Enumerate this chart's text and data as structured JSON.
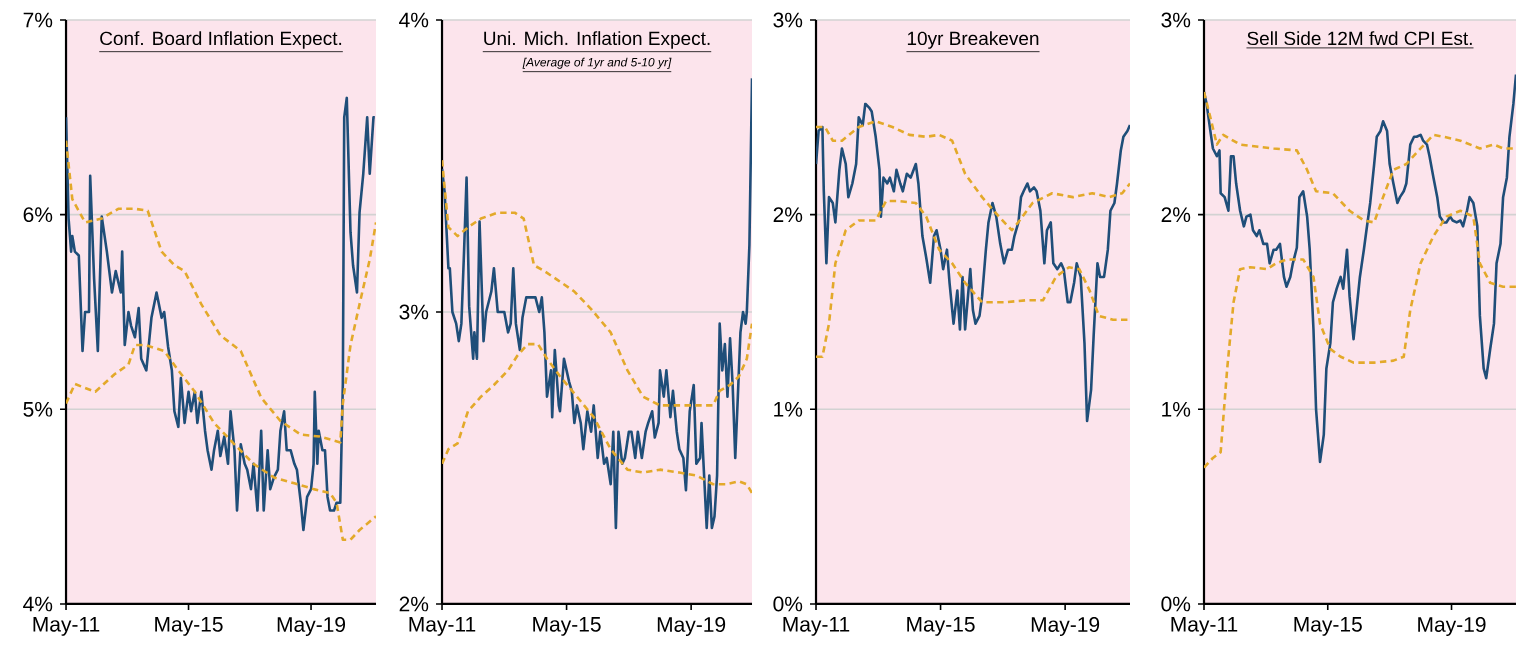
{
  "chart_data": [
    {
      "type": "line",
      "title": "Conf. Board Inflation Expect.",
      "grid": "y",
      "xlim": [
        "2011-05-01",
        "2021-06-15"
      ],
      "xticks": [
        {
          "value": "2011-05-01",
          "label": "May-11"
        },
        {
          "value": "2015-05-01",
          "label": "May-15"
        },
        {
          "value": "2019-05-01",
          "label": "May-19"
        }
      ],
      "ylim": [
        4,
        7
      ],
      "yticks": [
        {
          "value": 4,
          "label": "4%"
        },
        {
          "value": 5,
          "label": "5%"
        },
        {
          "value": 6,
          "label": "6%"
        },
        {
          "value": 7,
          "label": "7%"
        }
      ],
      "series": [
        {
          "color": "#1f4e79",
          "line_style": "solid",
          "x": [
            "2011-05-01",
            "2011-06-01",
            "2011-07-01",
            "2011-07-15",
            "2011-08-15",
            "2011-10-01",
            "2011-11-15",
            "2011-12-15",
            "2012-02-01",
            "2012-02-15",
            "2012-04-01",
            "2012-05-15",
            "2012-07-01",
            "2012-09-01",
            "2012-11-01",
            "2012-12-15",
            "2013-02-15",
            "2013-03-01",
            "2013-04-01",
            "2013-05-15",
            "2013-06-15",
            "2013-08-01",
            "2013-09-15",
            "2013-10-15",
            "2013-12-15",
            "2014-02-15",
            "2014-04-15",
            "2014-06-15",
            "2014-07-15",
            "2014-09-01",
            "2014-10-15",
            "2014-11-15",
            "2015-01-01",
            "2015-02-01",
            "2015-03-15",
            "2015-05-01",
            "2015-06-01",
            "2015-07-15",
            "2015-08-15",
            "2015-10-01",
            "2015-11-15",
            "2015-12-15",
            "2016-02-01",
            "2016-03-01",
            "2016-04-15",
            "2016-05-15",
            "2016-07-01",
            "2016-08-15",
            "2016-09-15",
            "2016-11-01",
            "2016-12-01",
            "2017-01-15",
            "2017-03-01",
            "2017-04-01",
            "2017-05-15",
            "2017-06-15",
            "2017-08-01",
            "2017-09-15",
            "2017-10-15",
            "2017-12-01",
            "2018-01-01",
            "2018-02-15",
            "2018-04-01",
            "2018-05-01",
            "2018-06-15",
            "2018-07-15",
            "2018-09-01",
            "2018-10-15",
            "2018-11-15",
            "2019-01-01",
            "2019-02-01",
            "2019-03-15",
            "2019-05-01",
            "2019-06-01",
            "2019-06-15",
            "2019-07-15",
            "2019-08-01",
            "2019-09-15",
            "2019-10-15",
            "2019-11-15",
            "2019-12-15",
            "2020-02-01",
            "2020-03-01",
            "2020-04-15",
            "2020-05-15",
            "2020-06-01",
            "2020-07-01",
            "2020-08-15",
            "2020-09-15",
            "2020-11-01",
            "2020-12-01",
            "2021-01-15",
            "2021-03-01",
            "2021-04-01",
            "2021-05-15",
            "2021-06-01"
          ],
          "values": [
            6.5,
            5.98,
            5.81,
            5.89,
            5.81,
            5.79,
            5.3,
            5.5,
            5.5,
            6.2,
            5.67,
            5.3,
            5.99,
            5.81,
            5.6,
            5.71,
            5.6,
            5.81,
            5.33,
            5.5,
            5.43,
            5.37,
            5.52,
            5.26,
            5.2,
            5.47,
            5.6,
            5.47,
            5.5,
            5.32,
            5.2,
            4.99,
            4.91,
            5.16,
            4.93,
            5.09,
            4.99,
            5.09,
            4.93,
            5.09,
            4.89,
            4.79,
            4.69,
            4.79,
            4.89,
            4.76,
            4.86,
            4.72,
            4.99,
            4.79,
            4.48,
            4.82,
            4.72,
            4.69,
            4.59,
            4.72,
            4.48,
            4.89,
            4.48,
            4.79,
            4.59,
            4.65,
            4.69,
            4.89,
            4.99,
            4.79,
            4.79,
            4.72,
            4.69,
            4.52,
            4.38,
            4.55,
            4.59,
            4.72,
            5.09,
            4.72,
            4.89,
            4.79,
            4.79,
            4.55,
            4.48,
            4.48,
            4.52,
            4.52,
            5.13,
            6.5,
            6.6,
            5.91,
            5.74,
            5.6,
            6.01,
            6.21,
            6.5,
            6.21,
            6.5,
            6.5
          ]
        },
        {
          "color": "#e3a92a",
          "line_style": "dashed",
          "x": [
            "2011-05-01",
            "2011-07-15",
            "2011-12-15",
            "2012-07-01",
            "2013-01-15",
            "2013-08-01",
            "2014-01-01",
            "2014-06-15",
            "2014-11-15",
            "2015-03-15",
            "2015-10-01",
            "2016-05-15",
            "2017-01-15",
            "2017-09-15",
            "2018-05-01",
            "2019-01-01",
            "2019-08-15",
            "2020-04-15",
            "2020-05-15",
            "2020-08-15",
            "2020-12-01",
            "2021-04-01",
            "2021-06-15"
          ],
          "values": [
            6.38,
            6.08,
            5.96,
            5.98,
            6.03,
            6.03,
            6.02,
            5.81,
            5.74,
            5.71,
            5.54,
            5.38,
            5.3,
            5.06,
            4.94,
            4.87,
            4.86,
            4.83,
            5.03,
            5.33,
            5.54,
            5.77,
            5.96
          ]
        },
        {
          "color": "#e3a92a",
          "line_style": "dashed",
          "x": [
            "2011-05-01",
            "2011-08-15",
            "2012-04-15",
            "2012-12-01",
            "2013-05-15",
            "2013-08-01",
            "2013-12-01",
            "2014-07-15",
            "2015-01-01",
            "2015-07-15",
            "2016-03-01",
            "2016-11-01",
            "2017-06-15",
            "2018-02-15",
            "2018-10-15",
            "2019-06-01",
            "2019-12-15",
            "2020-03-01",
            "2020-05-15",
            "2020-08-15",
            "2020-12-01",
            "2021-06-15"
          ],
          "values": [
            5.03,
            5.13,
            5.09,
            5.18,
            5.23,
            5.33,
            5.33,
            5.3,
            5.2,
            5.09,
            4.93,
            4.82,
            4.72,
            4.65,
            4.62,
            4.59,
            4.57,
            4.52,
            4.33,
            4.33,
            4.38,
            4.45
          ]
        }
      ]
    },
    {
      "type": "line",
      "title": "Uni. Mich. Inflation Expect.",
      "subtitle": "[Average of 1yr and 5-10 yr]",
      "grid": "y",
      "xlim": [
        "2011-05-01",
        "2021-04-15"
      ],
      "xticks": [
        {
          "value": "2011-05-01",
          "label": "May-11"
        },
        {
          "value": "2015-05-01",
          "label": "May-15"
        },
        {
          "value": "2019-05-01",
          "label": "May-19"
        }
      ],
      "ylim": [
        2,
        4
      ],
      "yticks": [
        {
          "value": 2,
          "label": "2%"
        },
        {
          "value": 3,
          "label": "3%"
        },
        {
          "value": 4,
          "label": "4%"
        }
      ],
      "series": [
        {
          "color": "#1f4e79",
          "line_style": "solid",
          "x": [
            "2011-05-01",
            "2011-06-01",
            "2011-07-15",
            "2011-08-01",
            "2011-09-01",
            "2011-10-15",
            "2011-11-15",
            "2011-12-15",
            "2012-01-15",
            "2012-02-15",
            "2012-03-15",
            "2012-05-01",
            "2012-05-15",
            "2012-06-15",
            "2012-07-15",
            "2012-09-01",
            "2012-10-01",
            "2012-12-01",
            "2013-01-01",
            "2013-02-15",
            "2013-04-01",
            "2013-05-01",
            "2013-06-15",
            "2013-07-15",
            "2013-08-15",
            "2013-09-15",
            "2013-11-01",
            "2013-12-01",
            "2014-01-15",
            "2014-03-01",
            "2014-05-01",
            "2014-06-15",
            "2014-07-15",
            "2014-08-15",
            "2014-09-15",
            "2014-11-01",
            "2014-11-15",
            "2014-12-15",
            "2015-02-01",
            "2015-02-15",
            "2015-04-01",
            "2015-05-01",
            "2015-06-01",
            "2015-07-01",
            "2015-08-01",
            "2015-09-01",
            "2015-10-15",
            "2015-11-15",
            "2016-01-01",
            "2016-02-15",
            "2016-03-15",
            "2016-05-01",
            "2016-06-01",
            "2016-07-15",
            "2016-08-15",
            "2016-10-01",
            "2016-11-01",
            "2016-12-01",
            "2017-01-01",
            "2017-02-15",
            "2017-03-15",
            "2017-05-01",
            "2017-06-01",
            "2017-07-15",
            "2017-08-15",
            "2017-10-01",
            "2017-11-15",
            "2017-12-15",
            "2018-02-01",
            "2018-03-01",
            "2018-04-15",
            "2018-05-01",
            "2018-06-15",
            "2018-07-15",
            "2018-09-01",
            "2018-10-01",
            "2018-11-15",
            "2018-12-15",
            "2019-02-01",
            "2019-03-01",
            "2019-04-15",
            "2019-06-01",
            "2019-07-01",
            "2019-08-15",
            "2019-09-01",
            "2019-10-01",
            "2019-11-01",
            "2019-12-01",
            "2020-01-01",
            "2020-02-01",
            "2020-03-01",
            "2020-04-01",
            "2020-05-01",
            "2020-06-01",
            "2020-07-01",
            "2020-08-01",
            "2020-09-01",
            "2020-10-01",
            "2020-11-01",
            "2020-12-01",
            "2021-01-01",
            "2021-02-01",
            "2021-02-15",
            "2021-03-15",
            "2021-04-15"
          ],
          "values": [
            3.49,
            3.41,
            3.15,
            3.15,
            3.0,
            2.96,
            2.9,
            2.96,
            3.2,
            3.46,
            3.02,
            2.84,
            2.93,
            2.84,
            3.31,
            2.9,
            3.0,
            3.07,
            3.15,
            3.0,
            3.0,
            3.0,
            2.93,
            2.96,
            3.15,
            2.96,
            2.87,
            2.98,
            3.05,
            3.05,
            3.05,
            3.0,
            3.05,
            2.93,
            2.71,
            2.8,
            2.64,
            2.87,
            2.68,
            2.66,
            2.84,
            2.8,
            2.76,
            2.73,
            2.62,
            2.68,
            2.62,
            2.53,
            2.66,
            2.59,
            2.68,
            2.5,
            2.59,
            2.48,
            2.5,
            2.41,
            2.59,
            2.26,
            2.59,
            2.48,
            2.5,
            2.59,
            2.59,
            2.5,
            2.59,
            2.5,
            2.59,
            2.62,
            2.66,
            2.57,
            2.62,
            2.8,
            2.71,
            2.8,
            2.64,
            2.73,
            2.59,
            2.53,
            2.5,
            2.39,
            2.66,
            2.75,
            2.48,
            2.5,
            2.62,
            2.44,
            2.26,
            2.44,
            2.26,
            2.3,
            2.44,
            2.96,
            2.8,
            2.89,
            2.71,
            2.91,
            2.75,
            2.5,
            2.71,
            2.93,
            3.0,
            2.96,
            3.0,
            3.23,
            3.8
          ]
        },
        {
          "color": "#e3a92a",
          "line_style": "dashed",
          "x": [
            "2011-05-01",
            "2011-07-15",
            "2011-11-01",
            "2012-03-01",
            "2012-08-01",
            "2013-02-15",
            "2013-09-01",
            "2013-12-15",
            "2014-04-15",
            "2014-08-15",
            "2015-01-15",
            "2015-08-01",
            "2016-02-15",
            "2016-10-01",
            "2017-04-15",
            "2017-10-15",
            "2018-05-01",
            "2018-12-15",
            "2019-08-15",
            "2020-01-15",
            "2020-04-01",
            "2020-08-01",
            "2020-11-15",
            "2021-02-15",
            "2021-04-15"
          ],
          "values": [
            3.52,
            3.29,
            3.26,
            3.29,
            3.32,
            3.34,
            3.34,
            3.32,
            3.16,
            3.14,
            3.11,
            3.07,
            3.01,
            2.93,
            2.8,
            2.71,
            2.68,
            2.68,
            2.68,
            2.68,
            2.73,
            2.75,
            2.78,
            2.84,
            2.96
          ]
        },
        {
          "color": "#e3a92a",
          "line_style": "dashed",
          "x": [
            "2011-05-01",
            "2011-07-15",
            "2011-11-01",
            "2012-03-01",
            "2012-08-01",
            "2013-01-01",
            "2013-06-15",
            "2013-10-01",
            "2014-02-01",
            "2014-06-01",
            "2014-09-15",
            "2015-02-15",
            "2015-09-01",
            "2016-03-15",
            "2016-10-01",
            "2017-04-15",
            "2017-10-15",
            "2018-05-01",
            "2018-12-15",
            "2019-07-01",
            "2020-01-15",
            "2020-06-15",
            "2020-11-15",
            "2021-02-15",
            "2021-04-15"
          ],
          "values": [
            2.48,
            2.53,
            2.55,
            2.66,
            2.71,
            2.75,
            2.8,
            2.85,
            2.89,
            2.89,
            2.84,
            2.78,
            2.71,
            2.64,
            2.53,
            2.46,
            2.45,
            2.46,
            2.45,
            2.44,
            2.41,
            2.41,
            2.42,
            2.41,
            2.38
          ]
        }
      ]
    },
    {
      "type": "line",
      "title": "10yr Breakeven",
      "grid": "y",
      "xlim": [
        "2011-05-01",
        "2021-06-01"
      ],
      "xticks": [
        {
          "value": "2011-05-01",
          "label": "May-11"
        },
        {
          "value": "2015-05-01",
          "label": "May-15"
        },
        {
          "value": "2019-05-01",
          "label": "May-19"
        }
      ],
      "ylim": [
        0,
        3
      ],
      "yticks": [
        {
          "value": 0,
          "label": "0%"
        },
        {
          "value": 1,
          "label": "1%"
        },
        {
          "value": 2,
          "label": "2%"
        },
        {
          "value": 3,
          "label": "3%"
        }
      ],
      "series": [
        {
          "color": "#1f4e79",
          "line_style": "solid",
          "x": [
            "2011-05-01",
            "2011-06-01",
            "2011-07-15",
            "2011-08-01",
            "2011-09-01",
            "2011-10-01",
            "2011-11-15",
            "2011-12-15",
            "2012-02-01",
            "2012-03-01",
            "2012-04-15",
            "2012-05-15",
            "2012-07-01",
            "2012-08-15",
            "2012-09-15",
            "2012-11-01",
            "2012-12-01",
            "2013-01-15",
            "2013-02-15",
            "2013-04-01",
            "2013-05-15",
            "2013-06-01",
            "2013-07-01",
            "2013-08-15",
            "2013-09-15",
            "2013-11-01",
            "2013-12-01",
            "2014-01-15",
            "2014-02-15",
            "2014-04-01",
            "2014-05-15",
            "2014-07-15",
            "2014-08-15",
            "2014-10-01",
            "2014-11-15",
            "2015-01-01",
            "2015-02-15",
            "2015-03-15",
            "2015-05-01",
            "2015-06-01",
            "2015-07-15",
            "2015-08-15",
            "2015-10-01",
            "2015-11-15",
            "2015-12-15",
            "2016-01-15",
            "2016-02-15",
            "2016-04-15",
            "2016-05-15",
            "2016-06-15",
            "2016-08-01",
            "2016-09-01",
            "2016-10-15",
            "2016-11-15",
            "2017-01-01",
            "2017-02-15",
            "2017-04-01",
            "2017-05-15",
            "2017-07-01",
            "2017-08-15",
            "2017-09-15",
            "2017-11-01",
            "2017-12-01",
            "2018-01-01",
            "2018-02-15",
            "2018-03-15",
            "2018-05-01",
            "2018-06-01",
            "2018-07-15",
            "2018-09-01",
            "2018-10-01",
            "2018-11-15",
            "2018-12-15",
            "2019-02-01",
            "2019-03-15",
            "2019-04-15",
            "2019-06-01",
            "2019-07-01",
            "2019-08-15",
            "2019-09-15",
            "2019-11-01",
            "2019-12-15",
            "2020-01-15",
            "2020-03-01",
            "2020-04-01",
            "2020-05-15",
            "2020-06-15",
            "2020-08-01",
            "2020-09-15",
            "2020-10-15",
            "2020-12-01",
            "2021-01-01",
            "2021-02-15",
            "2021-03-15",
            "2021-05-01",
            "2021-06-01"
          ],
          "values": [
            2.26,
            2.43,
            2.45,
            2.12,
            1.75,
            2.09,
            2.06,
            1.96,
            2.23,
            2.34,
            2.26,
            2.09,
            2.16,
            2.26,
            2.5,
            2.46,
            2.57,
            2.55,
            2.53,
            2.4,
            2.23,
            1.99,
            2.19,
            2.16,
            2.19,
            2.12,
            2.23,
            2.16,
            2.12,
            2.21,
            2.19,
            2.26,
            2.16,
            1.89,
            1.78,
            1.65,
            1.89,
            1.92,
            1.82,
            1.72,
            1.82,
            1.65,
            1.44,
            1.61,
            1.41,
            1.68,
            1.41,
            1.72,
            1.51,
            1.44,
            1.48,
            1.58,
            1.82,
            1.96,
            2.06,
            1.99,
            1.85,
            1.75,
            1.82,
            1.82,
            1.89,
            1.96,
            2.09,
            2.12,
            2.16,
            2.12,
            2.14,
            2.12,
            2.02,
            1.75,
            1.92,
            1.96,
            1.75,
            1.72,
            1.75,
            1.72,
            1.55,
            1.55,
            1.65,
            1.75,
            1.68,
            1.34,
            0.94,
            1.1,
            1.38,
            1.75,
            1.68,
            1.68,
            1.82,
            2.02,
            2.06,
            2.16,
            2.33,
            2.4,
            2.43,
            2.46
          ]
        },
        {
          "color": "#e3a92a",
          "line_style": "dashed",
          "x": [
            "2011-05-01",
            "2011-08-15",
            "2011-11-15",
            "2012-03-01",
            "2012-09-15",
            "2013-04-01",
            "2013-10-15",
            "2014-05-01",
            "2014-11-15",
            "2015-04-15",
            "2015-09-15",
            "2016-02-15",
            "2016-09-01",
            "2017-03-15",
            "2017-08-15",
            "2017-11-15",
            "2018-04-15",
            "2018-12-01",
            "2019-08-01",
            "2020-03-15",
            "2020-10-01",
            "2021-03-01",
            "2021-06-01"
          ],
          "values": [
            2.45,
            2.45,
            2.38,
            2.38,
            2.45,
            2.48,
            2.45,
            2.41,
            2.4,
            2.41,
            2.38,
            2.21,
            2.09,
            1.99,
            1.92,
            1.97,
            2.06,
            2.11,
            2.09,
            2.11,
            2.09,
            2.11,
            2.16
          ]
        },
        {
          "color": "#e3a92a",
          "line_style": "dashed",
          "x": [
            "2011-05-01",
            "2011-07-15",
            "2011-10-01",
            "2011-12-15",
            "2012-04-15",
            "2012-09-15",
            "2013-04-01",
            "2013-08-01",
            "2014-01-01",
            "2014-07-15",
            "2014-11-15",
            "2015-04-15",
            "2015-09-15",
            "2016-02-15",
            "2016-09-01",
            "2017-06-01",
            "2018-02-01",
            "2018-08-15",
            "2019-01-15",
            "2019-06-15",
            "2019-10-15",
            "2020-02-15",
            "2020-06-01",
            "2020-11-15",
            "2021-06-01"
          ],
          "values": [
            1.27,
            1.27,
            1.44,
            1.75,
            1.92,
            1.97,
            1.97,
            2.07,
            2.07,
            2.06,
            1.99,
            1.82,
            1.75,
            1.65,
            1.55,
            1.55,
            1.56,
            1.56,
            1.68,
            1.73,
            1.72,
            1.61,
            1.48,
            1.46,
            1.46
          ]
        }
      ]
    },
    {
      "type": "line",
      "title": "Sell Side 12M fwd CPI Est.",
      "grid": "y",
      "xlim": [
        "2011-05-01",
        "2021-06-01"
      ],
      "xticks": [
        {
          "value": "2011-05-01",
          "label": "May-11"
        },
        {
          "value": "2015-05-01",
          "label": "May-15"
        },
        {
          "value": "2019-05-01",
          "label": "May-19"
        }
      ],
      "ylim": [
        0,
        3
      ],
      "yticks": [
        {
          "value": 0,
          "label": "0%"
        },
        {
          "value": 1,
          "label": "1%"
        },
        {
          "value": 2,
          "label": "2%"
        },
        {
          "value": 3,
          "label": "3%"
        }
      ],
      "series": [
        {
          "color": "#1f4e79",
          "line_style": "solid",
          "x": [
            "2011-05-01",
            "2011-06-01",
            "2011-07-15",
            "2011-08-15",
            "2011-10-01",
            "2011-11-01",
            "2011-11-15",
            "2012-01-01",
            "2012-02-15",
            "2012-03-15",
            "2012-04-15",
            "2012-05-15",
            "2012-07-01",
            "2012-08-15",
            "2012-09-15",
            "2012-11-01",
            "2012-12-01",
            "2013-01-15",
            "2013-02-15",
            "2013-04-01",
            "2013-05-15",
            "2013-06-15",
            "2013-08-01",
            "2013-09-01",
            "2013-10-15",
            "2013-12-01",
            "2014-01-01",
            "2014-02-15",
            "2014-03-15",
            "2014-05-01",
            "2014-06-01",
            "2014-07-15",
            "2014-09-01",
            "2014-10-01",
            "2014-11-15",
            "2014-12-15",
            "2015-02-01",
            "2015-03-15",
            "2015-04-15",
            "2015-06-01",
            "2015-07-01",
            "2015-08-15",
            "2015-10-01",
            "2015-11-01",
            "2015-12-15",
            "2016-01-15",
            "2016-03-01",
            "2016-04-15",
            "2016-05-15",
            "2016-07-01",
            "2016-08-01",
            "2016-09-15",
            "2016-11-01",
            "2016-12-01",
            "2017-01-15",
            "2017-02-15",
            "2017-04-01",
            "2017-05-01",
            "2017-06-15",
            "2017-08-01",
            "2017-09-01",
            "2017-10-15",
            "2017-11-15",
            "2018-01-01",
            "2018-02-15",
            "2018-03-15",
            "2018-05-01",
            "2018-06-01",
            "2018-07-15",
            "2018-08-15",
            "2018-10-01",
            "2018-11-15",
            "2018-12-15",
            "2019-02-01",
            "2019-03-01",
            "2019-04-15",
            "2019-05-15",
            "2019-07-01",
            "2019-08-15",
            "2019-09-15",
            "2019-11-01",
            "2019-12-01",
            "2020-01-15",
            "2020-03-01",
            "2020-04-01",
            "2020-05-15",
            "2020-06-15",
            "2020-08-01",
            "2020-09-15",
            "2020-10-15",
            "2020-12-01",
            "2021-01-01",
            "2021-02-15",
            "2021-03-15",
            "2021-05-01",
            "2021-06-01"
          ],
          "values": [
            2.63,
            2.57,
            2.43,
            2.34,
            2.3,
            2.33,
            2.11,
            2.09,
            2.02,
            2.3,
            2.3,
            2.16,
            2.02,
            1.94,
            1.99,
            2.0,
            1.92,
            1.89,
            1.92,
            1.85,
            1.85,
            1.75,
            1.82,
            1.82,
            1.85,
            1.68,
            1.63,
            1.68,
            1.75,
            1.83,
            2.09,
            2.12,
            1.99,
            1.82,
            1.41,
            1.0,
            0.73,
            0.87,
            1.21,
            1.34,
            1.55,
            1.62,
            1.68,
            1.62,
            1.82,
            1.58,
            1.36,
            1.55,
            1.68,
            1.82,
            1.92,
            2.06,
            2.26,
            2.4,
            2.43,
            2.48,
            2.43,
            2.26,
            2.16,
            2.06,
            2.09,
            2.12,
            2.16,
            2.36,
            2.4,
            2.4,
            2.41,
            2.38,
            2.36,
            2.3,
            2.19,
            2.09,
            1.99,
            1.96,
            1.96,
            1.99,
            1.97,
            1.96,
            1.97,
            1.94,
            2.02,
            2.09,
            2.06,
            1.94,
            1.48,
            1.21,
            1.16,
            1.31,
            1.44,
            1.75,
            1.85,
            2.09,
            2.19,
            2.4,
            2.57,
            2.72
          ]
        },
        {
          "color": "#e3a92a",
          "line_style": "dashed",
          "x": [
            "2011-05-01",
            "2011-07-15",
            "2011-10-01",
            "2011-12-15",
            "2012-07-01",
            "2013-08-01",
            "2014-05-01",
            "2014-09-01",
            "2014-12-15",
            "2015-07-01",
            "2016-01-15",
            "2016-07-01",
            "2016-11-01",
            "2017-02-15",
            "2017-06-15",
            "2017-11-15",
            "2018-05-01",
            "2018-10-01",
            "2019-02-01",
            "2019-08-15",
            "2020-04-01",
            "2020-09-15",
            "2021-01-01",
            "2021-06-01"
          ],
          "values": [
            2.63,
            2.5,
            2.36,
            2.41,
            2.36,
            2.34,
            2.33,
            2.23,
            2.12,
            2.11,
            2.02,
            1.97,
            1.96,
            2.09,
            2.23,
            2.26,
            2.34,
            2.41,
            2.4,
            2.38,
            2.34,
            2.36,
            2.34,
            2.34
          ]
        },
        {
          "color": "#e3a92a",
          "line_style": "dashed",
          "x": [
            "2011-05-01",
            "2011-08-15",
            "2011-11-15",
            "2012-02-01",
            "2012-04-15",
            "2012-07-01",
            "2012-11-01",
            "2013-05-15",
            "2013-09-01",
            "2014-01-01",
            "2014-07-15",
            "2014-11-15",
            "2015-02-01",
            "2015-06-01",
            "2015-10-01",
            "2016-03-01",
            "2016-11-01",
            "2017-06-15",
            "2017-10-15",
            "2018-01-01",
            "2018-05-01",
            "2018-10-01",
            "2019-03-01",
            "2019-08-15",
            "2020-01-15",
            "2020-04-01",
            "2020-08-01",
            "2021-01-01",
            "2021-06-01"
          ],
          "values": [
            0.7,
            0.75,
            0.78,
            1.21,
            1.55,
            1.72,
            1.73,
            1.72,
            1.75,
            1.77,
            1.77,
            1.68,
            1.44,
            1.31,
            1.27,
            1.24,
            1.24,
            1.25,
            1.27,
            1.51,
            1.75,
            1.89,
            1.99,
            2.02,
            1.99,
            1.75,
            1.65,
            1.63,
            1.63
          ]
        }
      ]
    }
  ]
}
